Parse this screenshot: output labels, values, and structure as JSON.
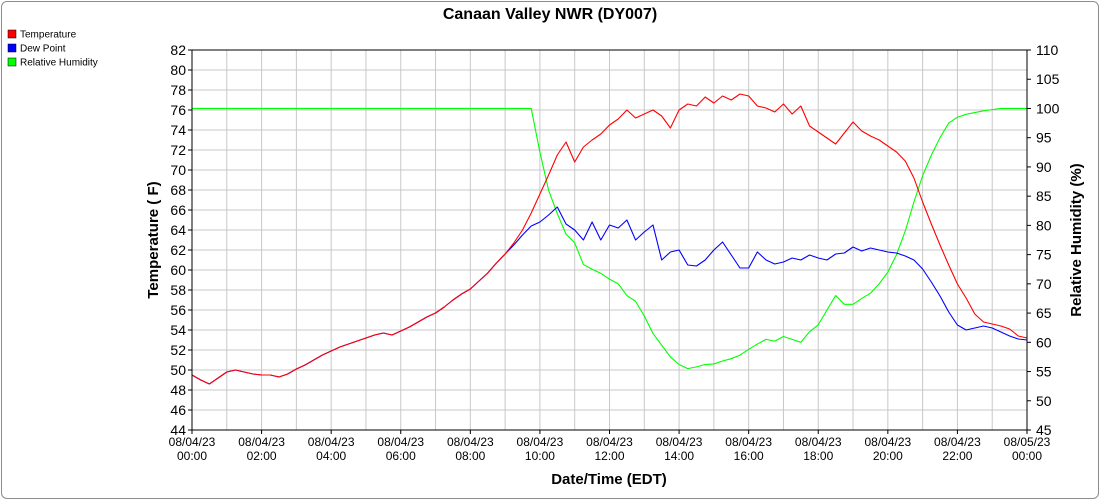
{
  "chart_data": {
    "type": "line",
    "title": "Canaan Valley NWR (DY007)",
    "xlabel": "Date/Time (EDT)",
    "ylabel": "Temperature ( F)",
    "y2label": "Relative Humidity (%)",
    "x_ticks": [
      {
        "date": "08/04/23",
        "time": "00:00"
      },
      {
        "date": "08/04/23",
        "time": "02:00"
      },
      {
        "date": "08/04/23",
        "time": "04:00"
      },
      {
        "date": "08/04/23",
        "time": "06:00"
      },
      {
        "date": "08/04/23",
        "time": "08:00"
      },
      {
        "date": "08/04/23",
        "time": "10:00"
      },
      {
        "date": "08/04/23",
        "time": "12:00"
      },
      {
        "date": "08/04/23",
        "time": "14:00"
      },
      {
        "date": "08/04/23",
        "time": "16:00"
      },
      {
        "date": "08/04/23",
        "time": "18:00"
      },
      {
        "date": "08/04/23",
        "time": "20:00"
      },
      {
        "date": "08/04/23",
        "time": "22:00"
      },
      {
        "date": "08/05/23",
        "time": "00:00"
      }
    ],
    "xlim": [
      "08/04/23 00:00",
      "08/05/23 00:00"
    ],
    "ylim": [
      44,
      82
    ],
    "y_ticks": [
      "44",
      "46",
      "48",
      "50",
      "52",
      "54",
      "56",
      "58",
      "60",
      "62",
      "64",
      "66",
      "68",
      "70",
      "72",
      "74",
      "76",
      "78",
      "80",
      "82"
    ],
    "y2lim": [
      45,
      110
    ],
    "y2_ticks": [
      "45",
      "50",
      "55",
      "60",
      "65",
      "70",
      "75",
      "80",
      "85",
      "90",
      "95",
      "100",
      "105",
      "110"
    ],
    "grid": true,
    "legend_position": "top-left",
    "hours_x": [
      0,
      0.25,
      0.5,
      0.75,
      1,
      1.25,
      1.5,
      1.75,
      2,
      2.25,
      2.5,
      2.75,
      3,
      3.25,
      3.5,
      3.75,
      4,
      4.25,
      4.5,
      4.75,
      5,
      5.25,
      5.5,
      5.75,
      6,
      6.25,
      6.5,
      6.75,
      7,
      7.25,
      7.5,
      7.75,
      8,
      8.25,
      8.5,
      8.75,
      9,
      9.25,
      9.5,
      9.75,
      10,
      10.25,
      10.5,
      10.75,
      11,
      11.25,
      11.5,
      11.75,
      12,
      12.25,
      12.5,
      12.75,
      13,
      13.25,
      13.5,
      13.75,
      14,
      14.25,
      14.5,
      14.75,
      15,
      15.25,
      15.5,
      15.75,
      16,
      16.25,
      16.5,
      16.75,
      17,
      17.25,
      17.5,
      17.75,
      18,
      18.25,
      18.5,
      18.75,
      19,
      19.25,
      19.5,
      19.75,
      20,
      20.25,
      20.5,
      20.75,
      21,
      21.25,
      21.5,
      21.75,
      22,
      22.25,
      22.5,
      22.75,
      23,
      23.25,
      23.5,
      23.75,
      24
    ],
    "series": [
      {
        "name": "Temperature",
        "color": "#ff0000",
        "axis": "left",
        "values": [
          49.5,
          49,
          48.6,
          49.2,
          49.8,
          50,
          49.8,
          49.6,
          49.5,
          49.5,
          49.3,
          49.6,
          50.1,
          50.5,
          51.0,
          51.5,
          51.9,
          52.3,
          52.6,
          52.9,
          53.2,
          53.5,
          53.7,
          53.5,
          53.9,
          54.3,
          54.8,
          55.3,
          55.7,
          56.3,
          57.0,
          57.6,
          58.1,
          58.9,
          59.7,
          60.7,
          61.6,
          62.7,
          64.0,
          65.7,
          67.6,
          69.5,
          71.5,
          72.8,
          70.8,
          72.3,
          73.0,
          73.6,
          74.5,
          75.1,
          76.0,
          75.2,
          75.6,
          76.0,
          75.4,
          74.2,
          76.0,
          76.6,
          76.4,
          77.3,
          76.7,
          77.4,
          77.0,
          77.6,
          77.4,
          76.4,
          76.2,
          75.8,
          76.6,
          75.6,
          76.4,
          74.4,
          73.8,
          73.2,
          72.6,
          73.7,
          74.8,
          73.9,
          73.4,
          73.0,
          72.4,
          71.8,
          70.9,
          69.2,
          66.8,
          64.6,
          62.5,
          60.5,
          58.6,
          57.2,
          55.6,
          54.8,
          54.6,
          54.4,
          54.1,
          53.4,
          53.2,
          53.3,
          53.1,
          52.8,
          52.2
        ]
      },
      {
        "name": "Dew Point",
        "color": "#0000ff",
        "axis": "left",
        "values": [
          49.5,
          49,
          48.6,
          49.2,
          49.8,
          50,
          49.8,
          49.6,
          49.5,
          49.5,
          49.3,
          49.6,
          50.1,
          50.5,
          51.0,
          51.5,
          51.9,
          52.3,
          52.6,
          52.9,
          53.2,
          53.5,
          53.7,
          53.5,
          53.9,
          54.3,
          54.8,
          55.3,
          55.7,
          56.3,
          57.0,
          57.6,
          58.1,
          58.9,
          59.7,
          60.7,
          61.6,
          62.5,
          63.5,
          64.4,
          64.8,
          65.5,
          66.3,
          64.6,
          64.0,
          63.0,
          64.8,
          63.0,
          64.5,
          64.2,
          65.0,
          63.0,
          63.8,
          64.5,
          61.0,
          61.8,
          62.0,
          60.5,
          60.4,
          61.0,
          62.0,
          62.8,
          61.5,
          60.2,
          60.2,
          61.8,
          61.0,
          60.6,
          60.8,
          61.2,
          61.0,
          61.5,
          61.2,
          61.0,
          61.6,
          61.7,
          62.3,
          61.9,
          62.2,
          62.0,
          61.8,
          61.7,
          61.4,
          61.0,
          60.1,
          58.8,
          57.4,
          55.8,
          54.5,
          54.0,
          54.2,
          54.4,
          54.2,
          53.8,
          53.4,
          53.1,
          53.0,
          53.0,
          52.9,
          52.6,
          52.2
        ]
      },
      {
        "name": "Relative Humidity",
        "color": "#00ff00",
        "axis": "right",
        "values": [
          100,
          100,
          100,
          100,
          100,
          100,
          100,
          100,
          100,
          100,
          100,
          100,
          100,
          100,
          100,
          100,
          100,
          100,
          100,
          100,
          100,
          100,
          100,
          100,
          100,
          100,
          100,
          100,
          100,
          100,
          100,
          100,
          100,
          100,
          100,
          100,
          100,
          100,
          100,
          100,
          92.5,
          86,
          82,
          78.5,
          77,
          73.3,
          72.5,
          71.8,
          70.8,
          70,
          68,
          67,
          64.5,
          61.5,
          59.5,
          57.5,
          56.2,
          55.5,
          55.8,
          56.2,
          56.3,
          56.8,
          57.2,
          57.8,
          58.8,
          59.7,
          60.5,
          60.2,
          61.0,
          60.5,
          60.0,
          61.8,
          63.0,
          65.5,
          68.0,
          66.5,
          66.5,
          67.5,
          68.4,
          70.0,
          72.0,
          75.0,
          79.0,
          84.0,
          88.5,
          92.0,
          95.0,
          97.5,
          98.5,
          99,
          99.3,
          99.6,
          99.8,
          100,
          100,
          100,
          100,
          100,
          100,
          100,
          100
        ]
      }
    ]
  }
}
